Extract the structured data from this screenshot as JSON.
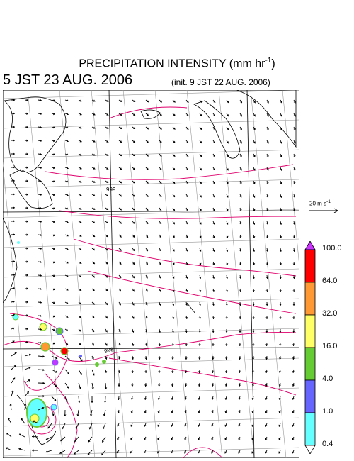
{
  "title": {
    "prefix": "PRECIPITATION INTENSITY (mm hr",
    "exp": "-1",
    "suffix": ")"
  },
  "valid_time": "5 JST 23 AUG. 2006",
  "init_time": "(init. 9 JST 22 AUG. 2006)",
  "isobar_labels": [
    "999",
    "998"
  ],
  "vector_scale": {
    "label": "20 m s",
    "exp": "-1"
  },
  "colorbar": {
    "labels": [
      "100.0",
      "64.0",
      "32.0",
      "16.0",
      "4.0",
      "1.0",
      "0.4"
    ],
    "colors": [
      "#ff0000",
      "#ff9933",
      "#ffff66",
      "#66cc33",
      "#6666ff",
      "#66ffff"
    ],
    "top_triangle_color": "#cc33ff",
    "bottom_triangle_color": "#ffffff"
  },
  "colors": {
    "isobar": "#e0006c",
    "grid": "#999999",
    "coast": "#000000"
  }
}
